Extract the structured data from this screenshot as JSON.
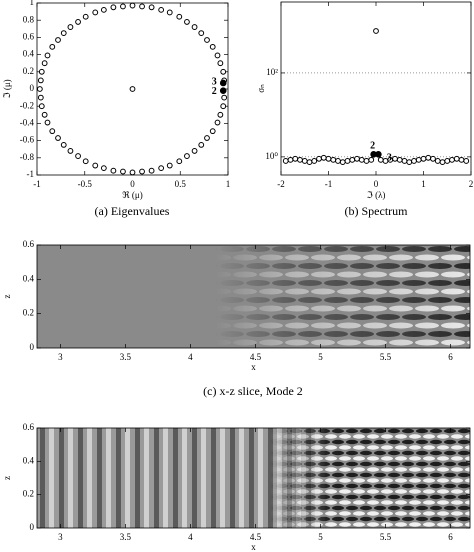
{
  "chart_data": [
    {
      "type": "scatter",
      "caption": "(a) Eigenvalues",
      "x_label": "ℜ (μ)",
      "y_label": "ℑ (μ)",
      "xlim": [
        -1,
        1
      ],
      "ylim": [
        -1,
        1
      ],
      "xticks": [
        -1,
        -0.5,
        0,
        0.5,
        1
      ],
      "yticks": [
        -1,
        -0.8,
        -0.6,
        -0.4,
        -0.2,
        0,
        0.2,
        0.4,
        0.6,
        0.8,
        1
      ],
      "series": [
        {
          "color": "#000000",
          "marker": "open",
          "x": [
            0.96,
            0.95,
            0.92,
            0.89,
            0.84,
            0.78,
            0.72,
            0.65,
            0.57,
            0.49,
            0.39,
            0.3,
            0.2,
            0.1,
            0,
            -0.1,
            -0.2,
            -0.3,
            -0.39,
            -0.49,
            -0.57,
            -0.65,
            -0.72,
            -0.78,
            -0.84,
            -0.89,
            -0.92,
            -0.95,
            -0.96,
            -0.97,
            -0.96,
            -0.95,
            -0.92,
            -0.89,
            -0.84,
            -0.78,
            -0.72,
            -0.65,
            -0.57,
            -0.49,
            -0.39,
            -0.3,
            -0.2,
            -0.1,
            0,
            0.1,
            0.2,
            0.3,
            0.39,
            0.49,
            0.57,
            0.65,
            0.72,
            0.78,
            0.84,
            0.89,
            0.92,
            0.95,
            0.96,
            0
          ],
          "values": [
            0.1,
            0.2,
            0.3,
            0.39,
            0.49,
            0.57,
            0.65,
            0.72,
            0.78,
            0.84,
            0.89,
            0.92,
            0.95,
            0.96,
            0.97,
            0.96,
            0.95,
            0.92,
            0.89,
            0.84,
            0.78,
            0.72,
            0.65,
            0.57,
            0.49,
            0.39,
            0.3,
            0.2,
            0.1,
            0,
            -0.1,
            -0.2,
            -0.3,
            -0.39,
            -0.49,
            -0.57,
            -0.65,
            -0.72,
            -0.78,
            -0.84,
            -0.89,
            -0.92,
            -0.95,
            -0.96,
            -0.97,
            -0.96,
            -0.95,
            -0.92,
            -0.89,
            -0.84,
            -0.78,
            -0.72,
            -0.65,
            -0.57,
            -0.49,
            -0.39,
            -0.3,
            -0.2,
            -0.1,
            0
          ]
        },
        {
          "color": "#000000",
          "marker": "filled",
          "x": [
            0.95,
            0.95
          ],
          "values": [
            0.07,
            -0.02
          ]
        }
      ],
      "annotations": [
        "3",
        "2"
      ]
    },
    {
      "type": "scatter",
      "caption": "(b) Spectrum",
      "x_label": "ℑ (λ)",
      "y_label": "σₙ",
      "xlim": [
        -2,
        2
      ],
      "ylim": [
        0.37,
        4900
      ],
      "log_y": true,
      "grid": true,
      "xticks": [
        -2,
        -1,
        0,
        1,
        2
      ],
      "yticks": [
        {
          "value": 1,
          "label": "10⁰"
        },
        {
          "value": 100,
          "label": "10²"
        }
      ],
      "series": [
        {
          "color": "#000000",
          "marker": "open",
          "x": [
            -1.9,
            -1.8,
            -1.7,
            -1.6,
            -1.5,
            -1.4,
            -1.3,
            -1.2,
            -1.1,
            -1.0,
            -0.9,
            -0.8,
            -0.7,
            -0.6,
            -0.5,
            -0.4,
            -0.3,
            -0.2,
            -0.1,
            0.1,
            0.2,
            0.3,
            0.4,
            0.5,
            0.6,
            0.7,
            0.8,
            0.9,
            1.0,
            1.1,
            1.2,
            1.3,
            1.4,
            1.5,
            1.6,
            1.7,
            1.8,
            1.9,
            0
          ],
          "values": [
            0.8,
            0.85,
            0.9,
            0.85,
            0.8,
            0.75,
            0.8,
            0.9,
            0.95,
            0.9,
            0.85,
            0.8,
            0.75,
            0.8,
            0.85,
            0.9,
            0.85,
            0.8,
            0.85,
            0.85,
            0.8,
            0.85,
            0.9,
            0.85,
            0.8,
            0.75,
            0.8,
            0.85,
            0.9,
            0.95,
            0.9,
            0.8,
            0.75,
            0.8,
            0.85,
            0.9,
            0.85,
            0.8,
            1000
          ]
        },
        {
          "color": "#000000",
          "marker": "filled",
          "x": [
            -0.05,
            0.05
          ],
          "values": [
            1.15,
            1.15
          ]
        }
      ],
      "annotations": [
        "2",
        "3"
      ]
    },
    {
      "type": "heatmap",
      "caption": "(c) x-z slice, Mode 2",
      "x_label": "x",
      "y_label": "z",
      "xlim": [
        2.82,
        6.15
      ],
      "ylim": [
        0,
        0.6
      ],
      "xticks": [
        3,
        3.5,
        4,
        4.5,
        5,
        5.5,
        6
      ],
      "yticks": [
        0,
        0.2,
        0.4,
        0.6
      ]
    },
    {
      "type": "heatmap",
      "x_label": "x",
      "y_label": "z",
      "xlim": [
        2.82,
        6.15
      ],
      "ylim": [
        0,
        0.6
      ],
      "xticks": [
        3,
        3.5,
        4,
        4.5,
        5,
        5.5,
        6
      ],
      "yticks": [
        0,
        0.2,
        0.4,
        0.6
      ]
    }
  ]
}
